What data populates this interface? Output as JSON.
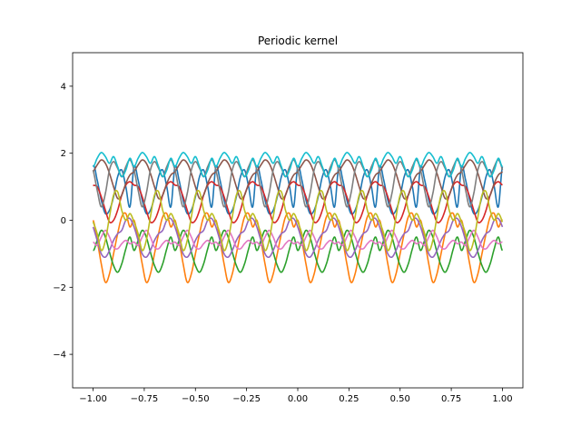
{
  "chart_data": {
    "type": "line",
    "title": "Periodic kernel",
    "xlabel": "",
    "ylabel": "",
    "xlim": [
      -1.1,
      1.1
    ],
    "ylim": [
      -5,
      5
    ],
    "xticks": [
      -1.0,
      -0.75,
      -0.5,
      -0.25,
      0.0,
      0.25,
      0.5,
      0.75,
      1.0
    ],
    "xtick_labels": [
      "−1.00",
      "−0.75",
      "−0.50",
      "−0.25",
      "0.00",
      "0.25",
      "0.50",
      "0.75",
      "1.00"
    ],
    "yticks": [
      -4,
      -2,
      0,
      2,
      4
    ],
    "ytick_labels": [
      "−4",
      "−2",
      "0",
      "2",
      "4"
    ],
    "grid": false,
    "legend": "none",
    "period": 0.2,
    "x": [
      -1.0,
      -0.98,
      -0.96,
      -0.94,
      -0.92,
      -0.9,
      -0.88,
      -0.86,
      -0.84,
      -0.82,
      -0.8
    ],
    "series": [
      {
        "color": "#1f77b4",
        "values": [
          1.6,
          1.2,
          0.6,
          0.2,
          0.3,
          0.7,
          1.3,
          1.5,
          1.0,
          0.4,
          1.6
        ]
      },
      {
        "color": "#ff7f0e",
        "values": [
          0.0,
          -0.6,
          -1.3,
          -1.85,
          -1.6,
          -1.0,
          -0.4,
          0.1,
          0.2,
          -0.2,
          0.0
        ]
      },
      {
        "color": "#2ca02c",
        "values": [
          -0.9,
          -0.6,
          -0.3,
          -0.5,
          -0.95,
          -1.35,
          -1.55,
          -1.3,
          -0.85,
          -0.5,
          -0.9
        ]
      },
      {
        "color": "#d62728",
        "values": [
          1.05,
          1.0,
          0.7,
          0.3,
          -0.05,
          0.0,
          0.3,
          0.75,
          1.05,
          1.15,
          1.05
        ]
      },
      {
        "color": "#9467bd",
        "values": [
          -0.2,
          -0.6,
          -1.0,
          -1.1,
          -0.9,
          -0.6,
          -0.4,
          -0.3,
          0.0,
          0.05,
          -0.2
        ]
      },
      {
        "color": "#8c564b",
        "values": [
          1.45,
          1.65,
          1.8,
          1.7,
          1.4,
          1.0,
          0.65,
          0.75,
          1.1,
          1.35,
          1.45
        ]
      },
      {
        "color": "#e377c2",
        "values": [
          -0.65,
          -0.75,
          -0.5,
          -0.3,
          -0.5,
          -0.8,
          -0.85,
          -0.7,
          -0.6,
          -0.7,
          -0.65
        ]
      },
      {
        "color": "#7f7f7f",
        "values": [
          1.5,
          0.9,
          0.4,
          0.8,
          1.5,
          1.75,
          1.55,
          1.3,
          1.6,
          1.8,
          1.5
        ]
      },
      {
        "color": "#bcbd22",
        "values": [
          -0.05,
          -0.4,
          -0.9,
          -0.6,
          0.1,
          0.75,
          0.85,
          0.3,
          0.0,
          0.2,
          -0.05
        ]
      },
      {
        "color": "#17becf",
        "values": [
          1.6,
          1.85,
          2.02,
          1.9,
          1.7,
          1.9,
          1.6,
          1.3,
          1.5,
          1.85,
          1.6
        ]
      }
    ]
  }
}
